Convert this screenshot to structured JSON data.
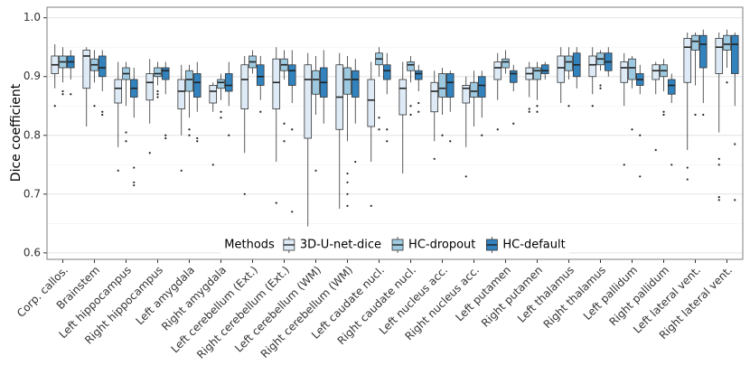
{
  "chart_data": {
    "type": "box",
    "y_label": "Dice coefficient",
    "legend_title": "Methods",
    "legend_position": "bottom",
    "grid": true,
    "ylim": [
      0.589,
      1.018
    ],
    "yticks": [
      0.6,
      0.7,
      0.8,
      0.9,
      {
        "value": 1,
        "label": "1.0"
      }
    ],
    "minor_yticks": [
      0.65,
      0.75,
      0.85,
      0.95
    ],
    "categories": [
      "Corp. callos.",
      "Brainstem",
      "Left hippocampus",
      "Right hippocampus",
      "Left amygdala",
      "Right amygdala",
      "Left cerebellum (Ext.)",
      "Right cerebellum (Ext.)",
      "Left cerebellum (WM)",
      "Right cerebellum (WM)",
      "Left caudate nucl.",
      "Right caudate nucl.",
      "Left nucleus acc.",
      "Right nucleus acc.",
      "Left putamen",
      "Right putamen",
      "Left thalamus",
      "Right thalamus",
      "Left pallidum",
      "Right pallidum",
      "Left lateral vent.",
      "Right lateral vent."
    ],
    "series": [
      {
        "name": "3D-U-net-dice",
        "color": "#deebf7",
        "lower": [
          0.88,
          0.815,
          0.78,
          0.82,
          0.8,
          0.84,
          0.77,
          0.755,
          0.645,
          0.675,
          0.755,
          0.735,
          0.79,
          0.78,
          0.86,
          0.865,
          0.855,
          0.87,
          0.85,
          0.87,
          0.775,
          0.805
        ],
        "q1": [
          0.905,
          0.88,
          0.855,
          0.86,
          0.845,
          0.855,
          0.845,
          0.845,
          0.795,
          0.81,
          0.815,
          0.835,
          0.84,
          0.855,
          0.895,
          0.895,
          0.89,
          0.9,
          0.89,
          0.895,
          0.89,
          0.905
        ],
        "median": [
          0.92,
          0.935,
          0.88,
          0.89,
          0.875,
          0.875,
          0.895,
          0.89,
          0.895,
          0.865,
          0.86,
          0.88,
          0.875,
          0.88,
          0.915,
          0.905,
          0.915,
          0.92,
          0.915,
          0.91,
          0.95,
          0.95
        ],
        "q3": [
          0.935,
          0.945,
          0.895,
          0.905,
          0.895,
          0.885,
          0.92,
          0.93,
          0.92,
          0.92,
          0.895,
          0.895,
          0.89,
          0.885,
          0.925,
          0.915,
          0.935,
          0.935,
          0.925,
          0.92,
          0.965,
          0.965
        ],
        "upper": [
          0.955,
          0.95,
          0.925,
          0.93,
          0.92,
          0.89,
          0.935,
          0.95,
          0.94,
          0.94,
          0.925,
          0.925,
          0.91,
          0.9,
          0.94,
          0.925,
          0.95,
          0.95,
          0.94,
          0.925,
          0.975,
          0.975
        ],
        "outliers": [
          [
            0.85
          ],
          [],
          [
            0.74
          ],
          [
            0.77
          ],
          [
            0.74
          ],
          [
            0.75
          ],
          [
            0.7
          ],
          [
            0.685
          ],
          [],
          [],
          [
            0.68
          ],
          [],
          [
            0.76
          ],
          [
            0.73
          ],
          [
            0.81
          ],
          [
            0.845,
            0.84
          ],
          [],
          [
            0.85
          ],
          [
            0.75
          ],
          [
            0.775
          ],
          [
            0.745,
            0.725
          ],
          [
            0.76,
            0.75,
            0.695,
            0.69
          ]
        ]
      },
      {
        "name": "HC-dropout",
        "color": "#9ecae1",
        "lower": [
          0.89,
          0.89,
          0.85,
          0.885,
          0.83,
          0.86,
          0.905,
          0.895,
          0.835,
          0.79,
          0.9,
          0.89,
          0.835,
          0.815,
          0.905,
          0.86,
          0.895,
          0.91,
          0.88,
          0.875,
          0.885,
          0.915
        ],
        "q1": [
          0.915,
          0.91,
          0.895,
          0.9,
          0.875,
          0.88,
          0.915,
          0.91,
          0.87,
          0.87,
          0.92,
          0.91,
          0.865,
          0.865,
          0.915,
          0.895,
          0.91,
          0.92,
          0.895,
          0.9,
          0.945,
          0.945
        ],
        "median": [
          0.925,
          0.92,
          0.905,
          0.905,
          0.895,
          0.89,
          0.925,
          0.92,
          0.895,
          0.895,
          0.93,
          0.92,
          0.88,
          0.875,
          0.925,
          0.91,
          0.925,
          0.93,
          0.915,
          0.91,
          0.96,
          0.955
        ],
        "q3": [
          0.935,
          0.93,
          0.915,
          0.915,
          0.91,
          0.895,
          0.935,
          0.93,
          0.91,
          0.915,
          0.94,
          0.925,
          0.905,
          0.89,
          0.93,
          0.915,
          0.935,
          0.94,
          0.93,
          0.92,
          0.97,
          0.97
        ],
        "upper": [
          0.95,
          0.945,
          0.925,
          0.925,
          0.92,
          0.905,
          0.945,
          0.945,
          0.935,
          0.935,
          0.95,
          0.935,
          0.915,
          0.91,
          0.945,
          0.925,
          0.95,
          0.945,
          0.935,
          0.93,
          0.975,
          0.98
        ],
        "outliers": [
          [
            0.875,
            0.87
          ],
          [
            0.85
          ],
          [
            0.805,
            0.79
          ],
          [
            0.875,
            0.87,
            0.865
          ],
          [
            0.81,
            0.8
          ],
          [
            0.84,
            0.83
          ],
          [],
          [
            0.82,
            0.79
          ],
          [
            0.74
          ],
          [
            0.735,
            0.72,
            0.7,
            0.68
          ],
          [
            0.83,
            0.81
          ],
          [
            0.85,
            0.835
          ],
          [
            0.8
          ],
          [],
          [],
          [
            0.85,
            0.84
          ],
          [
            0.85
          ],
          [
            0.885,
            0.88
          ],
          [
            0.81
          ],
          [
            0.84,
            0.835
          ],
          [
            0.835
          ],
          [
            0.89
          ]
        ]
      },
      {
        "name": "HC-default",
        "color": "#3182bd",
        "lower": [
          0.895,
          0.875,
          0.83,
          0.87,
          0.84,
          0.85,
          0.86,
          0.855,
          0.82,
          0.82,
          0.87,
          0.875,
          0.84,
          0.83,
          0.875,
          0.895,
          0.88,
          0.9,
          0.87,
          0.855,
          0.855,
          0.85
        ],
        "q1": [
          0.915,
          0.9,
          0.865,
          0.895,
          0.865,
          0.875,
          0.885,
          0.885,
          0.865,
          0.865,
          0.895,
          0.895,
          0.865,
          0.865,
          0.89,
          0.905,
          0.9,
          0.91,
          0.885,
          0.87,
          0.915,
          0.905
        ],
        "median": [
          0.925,
          0.915,
          0.88,
          0.91,
          0.89,
          0.885,
          0.9,
          0.91,
          0.89,
          0.895,
          0.91,
          0.905,
          0.89,
          0.885,
          0.905,
          0.91,
          0.92,
          0.925,
          0.895,
          0.885,
          0.955,
          0.955
        ],
        "q3": [
          0.935,
          0.935,
          0.895,
          0.915,
          0.905,
          0.905,
          0.92,
          0.92,
          0.915,
          0.91,
          0.92,
          0.91,
          0.905,
          0.9,
          0.91,
          0.92,
          0.94,
          0.94,
          0.905,
          0.895,
          0.97,
          0.97
        ],
        "upper": [
          0.945,
          0.945,
          0.915,
          0.925,
          0.925,
          0.925,
          0.935,
          0.945,
          0.945,
          0.93,
          0.94,
          0.92,
          0.91,
          0.91,
          0.92,
          0.925,
          0.95,
          0.95,
          0.92,
          0.905,
          0.98,
          0.975
        ],
        "outliers": [
          [
            0.87
          ],
          [
            0.84,
            0.835
          ],
          [
            0.745,
            0.72,
            0.715
          ],
          [
            0.8,
            0.795
          ],
          [
            0.795,
            0.79
          ],
          [
            0.8
          ],
          [
            0.84
          ],
          [
            0.81,
            0.67
          ],
          [],
          [
            0.755
          ],
          [
            0.81,
            0.79
          ],
          [
            0.855,
            0.84
          ],
          [
            0.79
          ],
          [
            0.8
          ],
          [
            0.82
          ],
          [],
          [],
          [],
          [
            0.8,
            0.73
          ],
          [
            0.75
          ],
          [
            0.835
          ],
          [
            0.785,
            0.69
          ]
        ]
      }
    ]
  }
}
